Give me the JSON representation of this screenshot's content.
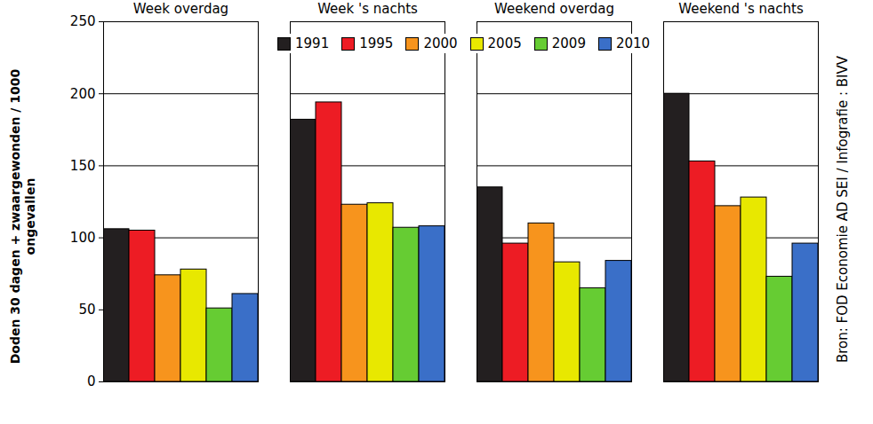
{
  "chart_data": {
    "type": "bar",
    "y_label": "Doden 30 dagen + zwaargewonden / 1000 ongevallen",
    "annotations": [
      "Bron: FOD Economie AD SEI / Infografie : BIVV"
    ],
    "categories": [
      "Week overdag",
      "Week 's nachts",
      "Weekend overdag",
      "Weekend 's nachts"
    ],
    "series": [
      {
        "name": "1991",
        "color": "#231f20",
        "values": [
          106,
          182,
          135,
          200
        ]
      },
      {
        "name": "1995",
        "color": "#ed1c24",
        "values": [
          105,
          194,
          96,
          153
        ]
      },
      {
        "name": "2000",
        "color": "#f7941d",
        "values": [
          74,
          123,
          110,
          122
        ]
      },
      {
        "name": "2005",
        "color": "#e8e800",
        "values": [
          78,
          124,
          83,
          128
        ]
      },
      {
        "name": "2009",
        "color": "#66cc33",
        "values": [
          51,
          107,
          65,
          73
        ]
      },
      {
        "name": "2010",
        "color": "#3a6fc8",
        "values": [
          61,
          108,
          84,
          96
        ]
      }
    ],
    "ylim": [
      0,
      250
    ],
    "yticks": [
      0,
      50,
      100,
      150,
      200,
      250
    ],
    "grid": true,
    "legend": "top"
  }
}
